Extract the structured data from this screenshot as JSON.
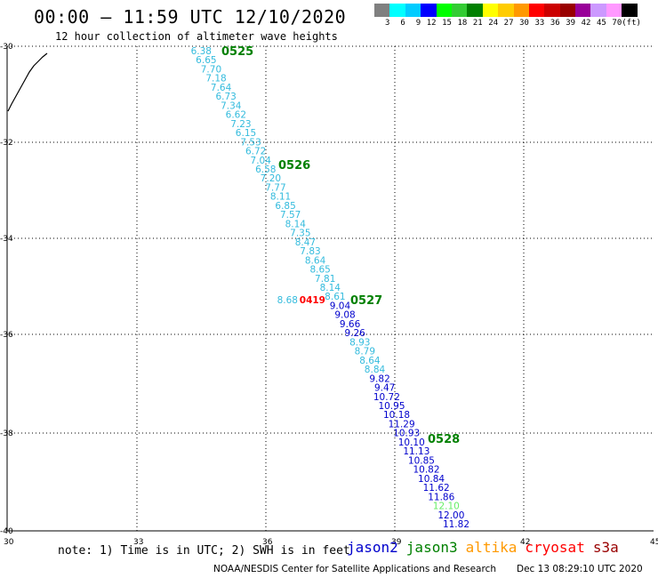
{
  "header": {
    "title": "00:00 – 11:59 UTC 12/10/2020",
    "subtitle": "12 hour collection of altimeter wave heights"
  },
  "colorbar": {
    "colors": [
      "#808080",
      "#00ffff",
      "#00ccff",
      "#0000ff",
      "#00ff00",
      "#33cc33",
      "#008000",
      "#ffff00",
      "#ffcc00",
      "#ff9900",
      "#ff0000",
      "#cc0000",
      "#990000",
      "#990099",
      "#cc99ff",
      "#ff99ff",
      "#000000"
    ],
    "labels": [
      "3",
      "6",
      "9",
      "12",
      "15",
      "18",
      "21",
      "24",
      "27",
      "30",
      "33",
      "36",
      "39",
      "42",
      "45",
      "70",
      "(ft)"
    ]
  },
  "axes": {
    "x_labels": [
      "30",
      "33",
      "36",
      "39",
      "42",
      "45"
    ],
    "y_labels": [
      "-30",
      "-32",
      "-34",
      "-36",
      "-38",
      "-40"
    ]
  },
  "satellite_colors": {
    "jason2": "#0000cc",
    "cyan": "#33bbdd",
    "light_green": "#66ee66",
    "red": "#ff0000",
    "time": "#008000"
  },
  "track": {
    "values": [
      {
        "v": "6.38",
        "c": "cyan"
      },
      {
        "v": "6.65",
        "c": "cyan"
      },
      {
        "v": "7.70",
        "c": "cyan"
      },
      {
        "v": "7.18",
        "c": "cyan"
      },
      {
        "v": "7.64",
        "c": "cyan"
      },
      {
        "v": "6.73",
        "c": "cyan"
      },
      {
        "v": "7.34",
        "c": "cyan"
      },
      {
        "v": "6.62",
        "c": "cyan"
      },
      {
        "v": "7.23",
        "c": "cyan"
      },
      {
        "v": "6.15",
        "c": "cyan"
      },
      {
        "v": "7.53",
        "c": "cyan"
      },
      {
        "v": "6.72",
        "c": "cyan"
      },
      {
        "v": "7.04",
        "c": "cyan"
      },
      {
        "v": "6.58",
        "c": "cyan"
      },
      {
        "v": "7.20",
        "c": "cyan"
      },
      {
        "v": "7.77",
        "c": "cyan"
      },
      {
        "v": "8.11",
        "c": "cyan"
      },
      {
        "v": "6.85",
        "c": "cyan"
      },
      {
        "v": "7.57",
        "c": "cyan"
      },
      {
        "v": "8.14",
        "c": "cyan"
      },
      {
        "v": "7.35",
        "c": "cyan"
      },
      {
        "v": "8.47",
        "c": "cyan"
      },
      {
        "v": "7.83",
        "c": "cyan"
      },
      {
        "v": "8.64",
        "c": "cyan"
      },
      {
        "v": "8.65",
        "c": "cyan"
      },
      {
        "v": "7.81",
        "c": "cyan"
      },
      {
        "v": "8.14",
        "c": "cyan"
      },
      {
        "v": "8.61",
        "c": "cyan"
      },
      {
        "v": "9.04",
        "c": "jason2"
      },
      {
        "v": "9.08",
        "c": "jason2"
      },
      {
        "v": "9.66",
        "c": "jason2"
      },
      {
        "v": "9.26",
        "c": "jason2"
      },
      {
        "v": "8.93",
        "c": "cyan"
      },
      {
        "v": "8.79",
        "c": "cyan"
      },
      {
        "v": "8.64",
        "c": "cyan"
      },
      {
        "v": "8.84",
        "c": "cyan"
      },
      {
        "v": "9.82",
        "c": "jason2"
      },
      {
        "v": "9.47",
        "c": "jason2"
      },
      {
        "v": "10.72",
        "c": "jason2"
      },
      {
        "v": "10.95",
        "c": "jason2"
      },
      {
        "v": "10.18",
        "c": "jason2"
      },
      {
        "v": "11.29",
        "c": "jason2"
      },
      {
        "v": "10.93",
        "c": "jason2"
      },
      {
        "v": "10.10",
        "c": "jason2"
      },
      {
        "v": "11.13",
        "c": "jason2"
      },
      {
        "v": "10.85",
        "c": "jason2"
      },
      {
        "v": "10.82",
        "c": "jason2"
      },
      {
        "v": "10.84",
        "c": "jason2"
      },
      {
        "v": "11.62",
        "c": "jason2"
      },
      {
        "v": "11.86",
        "c": "jason2"
      },
      {
        "v": "12.10",
        "c": "light_green"
      },
      {
        "v": "12.00",
        "c": "jason2"
      },
      {
        "v": "11.82",
        "c": "jason2"
      }
    ],
    "extra": [
      {
        "v": "8.68",
        "c": "cyan"
      },
      {
        "v": "0419",
        "c": "red"
      }
    ],
    "times": [
      "0525",
      "0526",
      "0527",
      "0528"
    ]
  },
  "footer": {
    "note": "note: 1) Time is in UTC; 2) SWH is in feet",
    "satellites": [
      {
        "name": "jason2",
        "color": "#0000cc"
      },
      {
        "name": "jason3",
        "color": "#008000"
      },
      {
        "name": "altika",
        "color": "#ff9900"
      },
      {
        "name": "cryosat",
        "color": "#ff0000"
      },
      {
        "name": "s3a",
        "color": "#990000"
      }
    ],
    "credit": "NOAA/NESDIS Center for Satellite Applications and Research",
    "timestamp": "Dec 13 08:29:10 UTC 2020"
  }
}
